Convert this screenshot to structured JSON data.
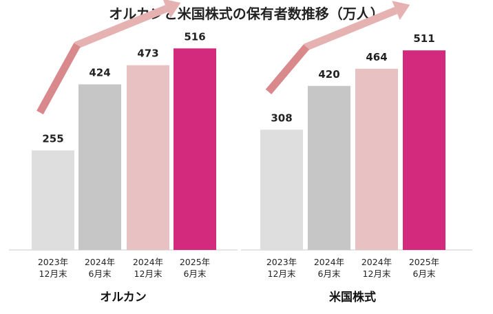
{
  "title": "オルカンと米国株式の保有者数推移（万人）",
  "colors": {
    "bar_2023_12": "#dedede",
    "bar_2024_06": "#c6c6c6",
    "bar_2024_12": "#e8c2c2",
    "bar_2025_06": "#d42a7e",
    "arrow": "#e5b1b1",
    "arrow_tail": "#d9898c",
    "baseline": "#c8c8c8",
    "grid": "#cccccc"
  },
  "chart_data": [
    {
      "type": "bar",
      "title": "オルカン",
      "categories": [
        [
          "2023年",
          "12月末"
        ],
        [
          "2024年",
          "6月末"
        ],
        [
          "2024年",
          "12月末"
        ],
        [
          "2025年",
          "6月末"
        ]
      ],
      "values": [
        255,
        424,
        473,
        516
      ],
      "unit": "万人",
      "ylim": [
        0,
        580
      ],
      "grid": false
    },
    {
      "type": "bar",
      "title": "米国株式",
      "categories": [
        [
          "2023年",
          "12月末"
        ],
        [
          "2024年",
          "6月末"
        ],
        [
          "2024年",
          "12月末"
        ],
        [
          "2025年",
          "6月末"
        ]
      ],
      "values": [
        308,
        420,
        464,
        511
      ],
      "unit": "万人",
      "ylim": [
        0,
        580
      ],
      "grid": false
    }
  ]
}
